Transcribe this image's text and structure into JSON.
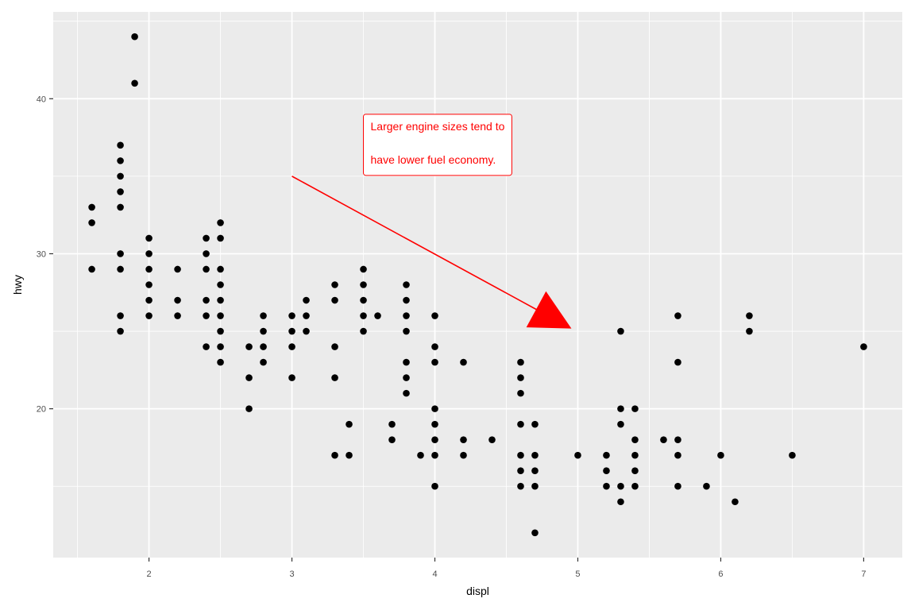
{
  "chart_data": {
    "type": "scatter",
    "title": "",
    "xlabel": "displ",
    "ylabel": "hwy",
    "xlim": [
      1.33,
      7.27
    ],
    "ylim": [
      10.4,
      45.6
    ],
    "x_ticks": [
      2,
      3,
      4,
      5,
      6,
      7
    ],
    "y_ticks": [
      20,
      30,
      40
    ],
    "x_tick_labels": [
      "2",
      "3",
      "4",
      "5",
      "6",
      "7"
    ],
    "y_tick_labels": [
      "20",
      "30",
      "40"
    ],
    "grid": true,
    "legend": "none",
    "colors": {
      "panel": "#ebebeb",
      "grid": "#ffffff",
      "point": "#000000",
      "annotation": "#ff0000"
    },
    "points": [
      [
        1.6,
        33
      ],
      [
        1.6,
        32
      ],
      [
        1.6,
        29
      ],
      [
        1.8,
        37
      ],
      [
        1.8,
        36
      ],
      [
        1.8,
        35
      ],
      [
        1.8,
        34
      ],
      [
        1.8,
        33
      ],
      [
        1.8,
        30
      ],
      [
        1.8,
        29
      ],
      [
        1.8,
        26
      ],
      [
        1.8,
        25
      ],
      [
        1.9,
        44
      ],
      [
        1.9,
        41
      ],
      [
        2.0,
        31
      ],
      [
        2.0,
        30
      ],
      [
        2.0,
        29
      ],
      [
        2.0,
        28
      ],
      [
        2.0,
        27
      ],
      [
        2.0,
        26
      ],
      [
        2.2,
        29
      ],
      [
        2.2,
        27
      ],
      [
        2.2,
        26
      ],
      [
        2.4,
        31
      ],
      [
        2.4,
        30
      ],
      [
        2.4,
        29
      ],
      [
        2.4,
        27
      ],
      [
        2.4,
        26
      ],
      [
        2.4,
        24
      ],
      [
        2.5,
        32
      ],
      [
        2.5,
        31
      ],
      [
        2.5,
        29
      ],
      [
        2.5,
        28
      ],
      [
        2.5,
        27
      ],
      [
        2.5,
        26
      ],
      [
        2.5,
        25
      ],
      [
        2.5,
        24
      ],
      [
        2.5,
        23
      ],
      [
        2.7,
        24
      ],
      [
        2.7,
        22
      ],
      [
        2.7,
        20
      ],
      [
        2.8,
        26
      ],
      [
        2.8,
        25
      ],
      [
        2.8,
        24
      ],
      [
        2.8,
        23
      ],
      [
        3.0,
        26
      ],
      [
        3.0,
        25
      ],
      [
        3.0,
        24
      ],
      [
        3.0,
        22
      ],
      [
        3.1,
        27
      ],
      [
        3.1,
        26
      ],
      [
        3.1,
        25
      ],
      [
        3.3,
        28
      ],
      [
        3.3,
        27
      ],
      [
        3.3,
        24
      ],
      [
        3.3,
        22
      ],
      [
        3.3,
        17
      ],
      [
        3.4,
        19
      ],
      [
        3.4,
        17
      ],
      [
        3.5,
        29
      ],
      [
        3.5,
        28
      ],
      [
        3.5,
        27
      ],
      [
        3.5,
        26
      ],
      [
        3.5,
        25
      ],
      [
        3.6,
        26
      ],
      [
        3.7,
        19
      ],
      [
        3.7,
        18
      ],
      [
        3.8,
        28
      ],
      [
        3.8,
        27
      ],
      [
        3.8,
        26
      ],
      [
        3.8,
        25
      ],
      [
        3.8,
        23
      ],
      [
        3.8,
        22
      ],
      [
        3.8,
        21
      ],
      [
        3.9,
        17
      ],
      [
        4.0,
        26
      ],
      [
        4.0,
        24
      ],
      [
        4.0,
        23
      ],
      [
        4.0,
        20
      ],
      [
        4.0,
        19
      ],
      [
        4.0,
        18
      ],
      [
        4.0,
        17
      ],
      [
        4.0,
        15
      ],
      [
        4.2,
        23
      ],
      [
        4.2,
        18
      ],
      [
        4.2,
        17
      ],
      [
        4.4,
        18
      ],
      [
        4.6,
        23
      ],
      [
        4.6,
        22
      ],
      [
        4.6,
        21
      ],
      [
        4.6,
        19
      ],
      [
        4.6,
        17
      ],
      [
        4.6,
        16
      ],
      [
        4.6,
        15
      ],
      [
        4.7,
        19
      ],
      [
        4.7,
        17
      ],
      [
        4.7,
        16
      ],
      [
        4.7,
        15
      ],
      [
        4.7,
        12
      ],
      [
        5.0,
        17
      ],
      [
        5.2,
        17
      ],
      [
        5.2,
        16
      ],
      [
        5.2,
        15
      ],
      [
        5.3,
        25
      ],
      [
        5.3,
        20
      ],
      [
        5.3,
        19
      ],
      [
        5.3,
        15
      ],
      [
        5.3,
        14
      ],
      [
        5.4,
        20
      ],
      [
        5.4,
        18
      ],
      [
        5.4,
        17
      ],
      [
        5.4,
        16
      ],
      [
        5.4,
        15
      ],
      [
        5.6,
        18
      ],
      [
        5.7,
        26
      ],
      [
        5.7,
        23
      ],
      [
        5.7,
        18
      ],
      [
        5.7,
        17
      ],
      [
        5.7,
        15
      ],
      [
        5.9,
        15
      ],
      [
        6.0,
        17
      ],
      [
        6.1,
        14
      ],
      [
        6.2,
        26
      ],
      [
        6.2,
        25
      ],
      [
        6.5,
        17
      ],
      [
        7.0,
        24
      ]
    ],
    "annotations": [
      {
        "type": "label",
        "lines": [
          "Larger engine sizes tend to",
          "have lower fuel economy."
        ],
        "x": 3.5,
        "y": 39,
        "color": "#ff0000"
      },
      {
        "type": "arrow",
        "x_start": 3.0,
        "y_start": 35,
        "x_end": 4.95,
        "y_end": 25.2,
        "color": "#ff0000",
        "head": "closed"
      }
    ]
  }
}
